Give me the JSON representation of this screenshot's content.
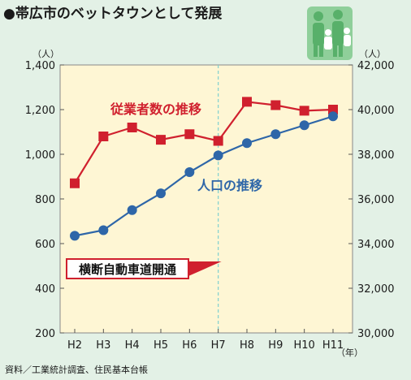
{
  "title": "●帯広市のベットタウンとして発展",
  "source": "資料／工業統計調査、住民基本台帳",
  "chart_data": {
    "type": "line",
    "categories": [
      "H2",
      "H3",
      "H4",
      "H5",
      "H6",
      "H7",
      "H8",
      "H9",
      "H10",
      "H11"
    ],
    "x_unit": "（年）",
    "left_axis": {
      "unit": "（人）",
      "ylim": [
        200,
        1400
      ],
      "ticks": [
        "200",
        "400",
        "600",
        "800",
        "1,000",
        "1,200",
        "1,400"
      ],
      "tick_values": [
        200,
        400,
        600,
        800,
        1000,
        1200,
        1400
      ]
    },
    "right_axis": {
      "unit": "（人）",
      "ylim": [
        30000,
        42000
      ],
      "ticks": [
        "30,000",
        "32,000",
        "34,000",
        "36,000",
        "38,000",
        "40,000",
        "42,000"
      ],
      "tick_values": [
        30000,
        32000,
        34000,
        36000,
        38000,
        40000,
        42000
      ]
    },
    "series": [
      {
        "name": "従業者数の推移",
        "axis": "left",
        "color": "#d0202e",
        "marker": "square",
        "values": [
          870,
          1080,
          1120,
          1065,
          1090,
          1060,
          1235,
          1220,
          1195,
          1200
        ]
      },
      {
        "name": "人口の推移",
        "axis": "right",
        "color": "#2e66a8",
        "marker": "circle",
        "values": [
          34350,
          34600,
          35500,
          36250,
          37200,
          37950,
          38500,
          38900,
          39300,
          39700
        ]
      }
    ],
    "annotation": {
      "text": "横断自動車道開通",
      "category": "H7"
    },
    "grid": false
  },
  "icons": {
    "family": "family-icon"
  }
}
